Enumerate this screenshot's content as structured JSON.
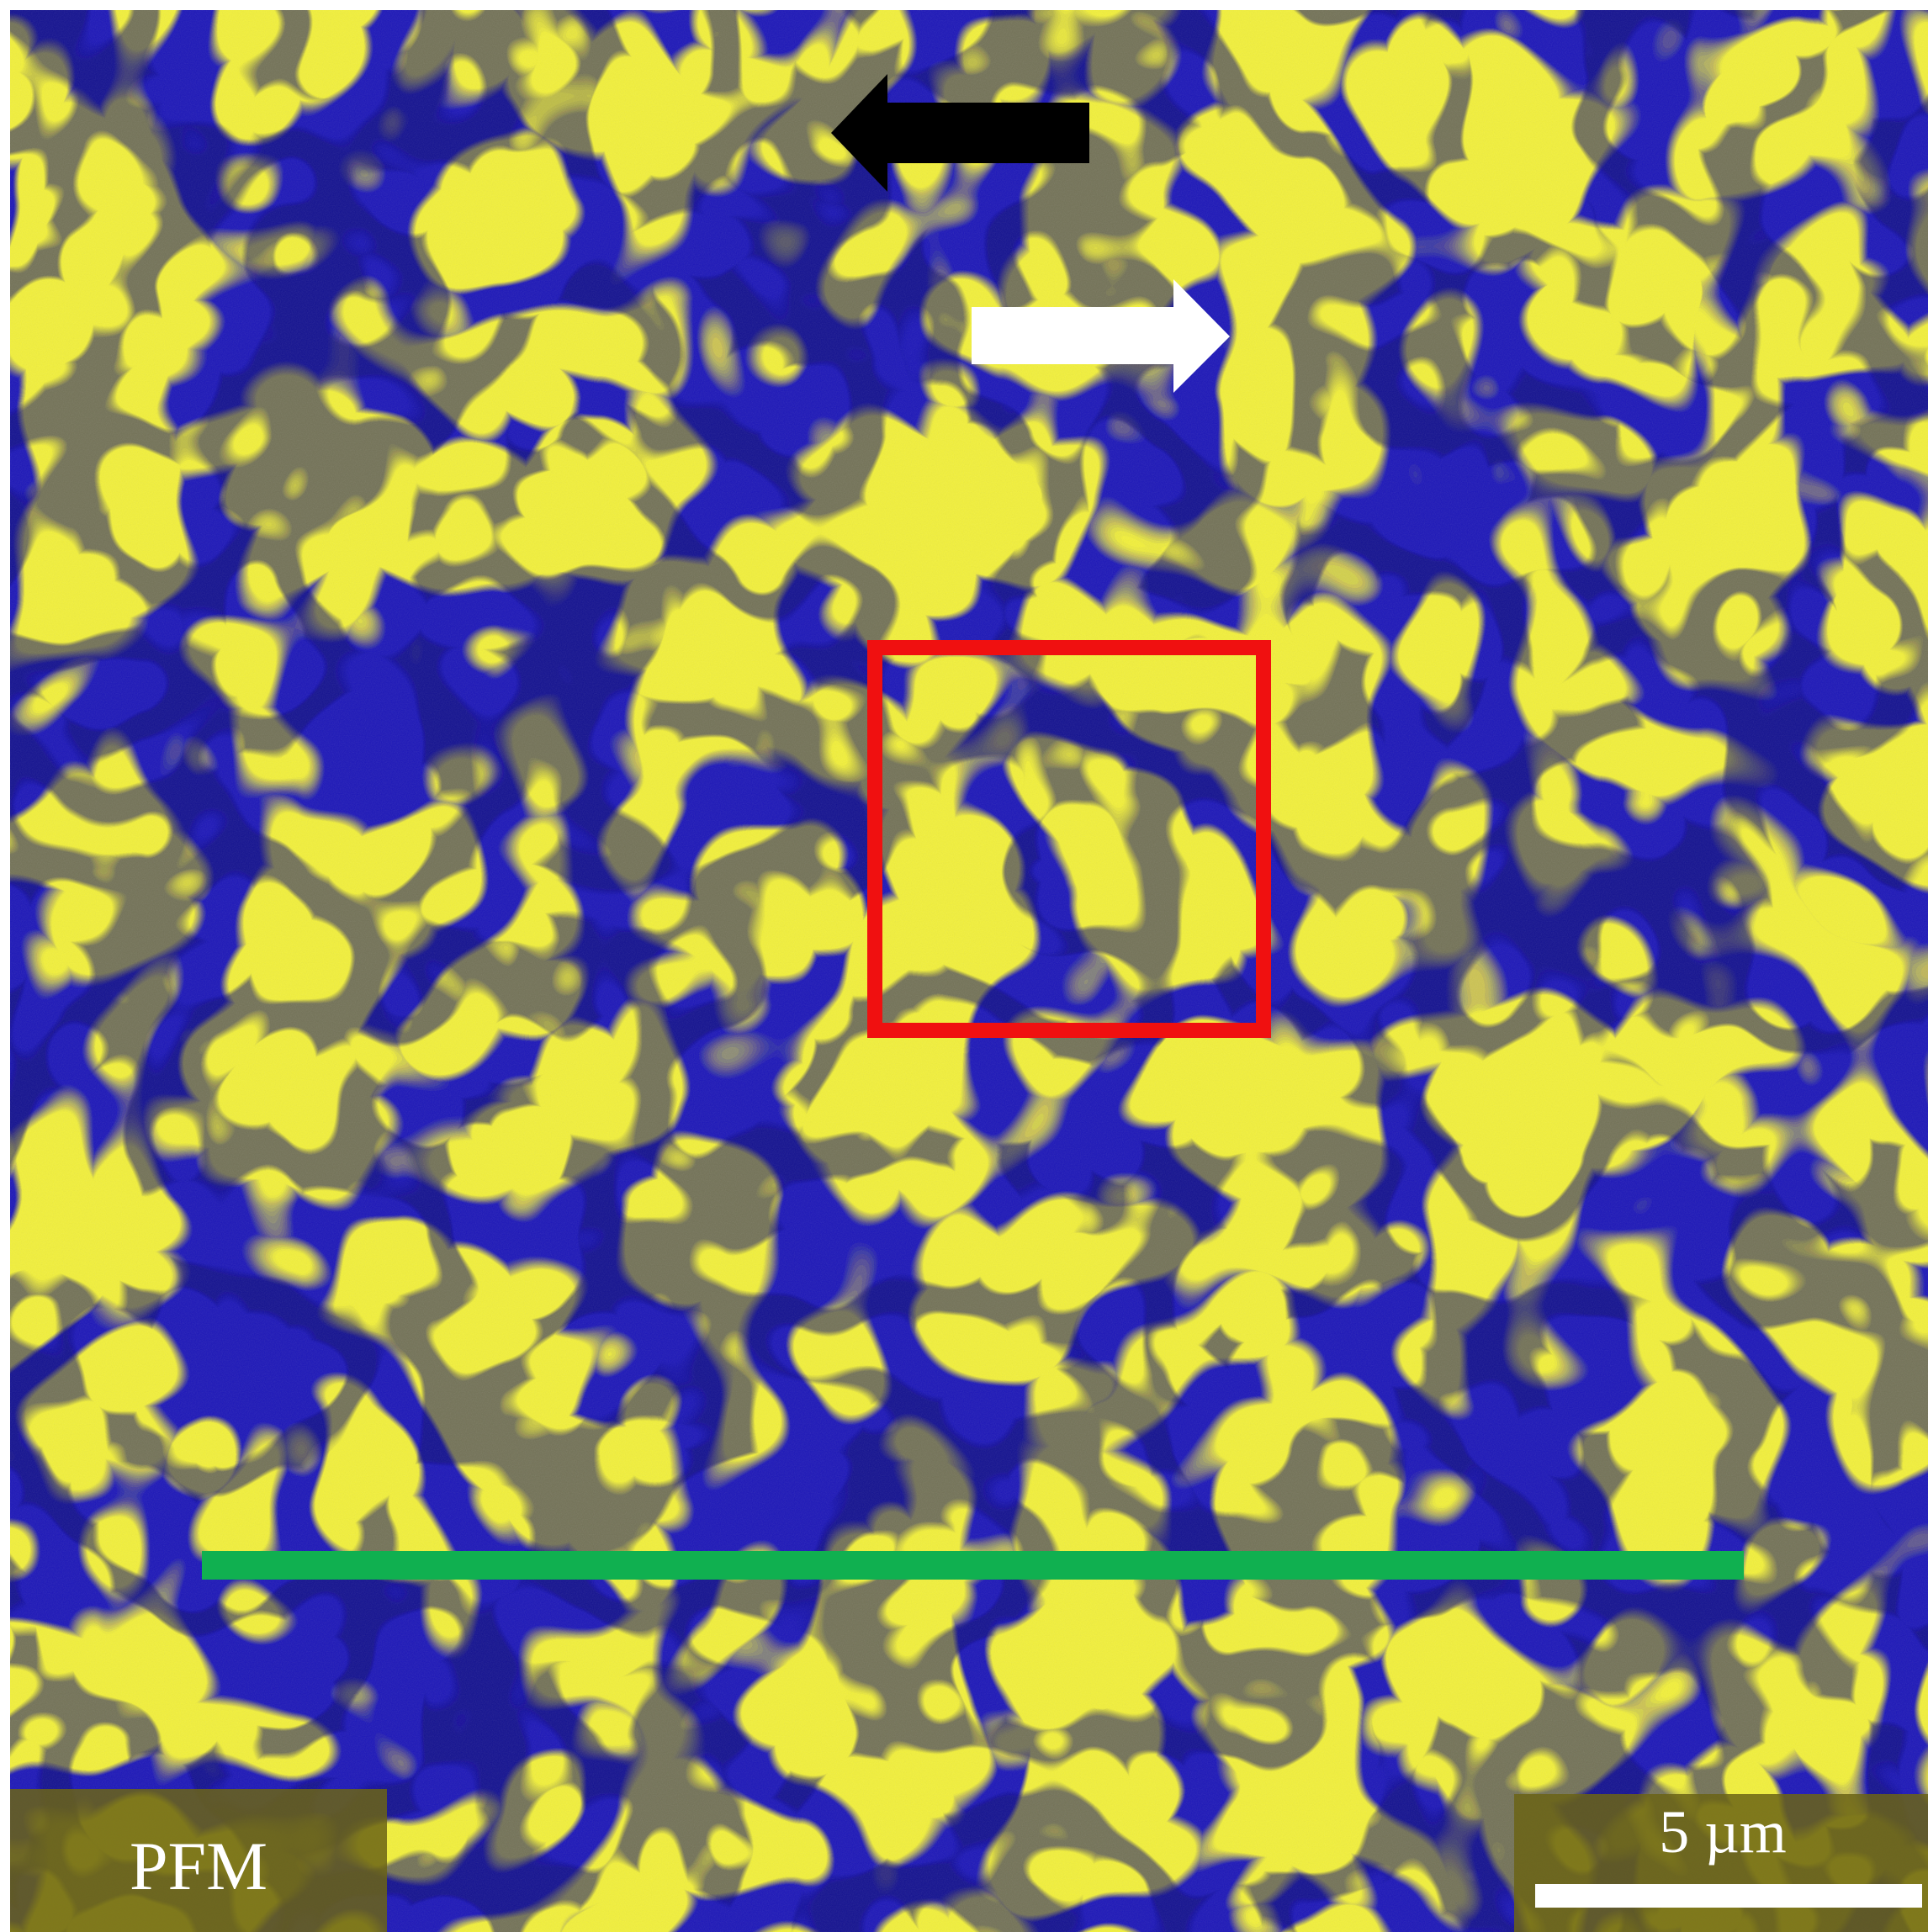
{
  "image": {
    "mode_label": "PFM",
    "scale_bar_label": "5 µm"
  },
  "colors": {
    "background_yellow": "#f2f03a",
    "domain_blue": "#1a14b8",
    "domain_dark": "#0a0870",
    "left_arrow": "#000000",
    "right_arrow": "#ffffff",
    "highlight_box": "#f01010",
    "line_marker": "#10b050",
    "label_panel": "#6b6415",
    "label_text": "#ffffff"
  },
  "icons": {
    "left_arrow": "arrow-left-icon",
    "right_arrow": "arrow-right-icon"
  }
}
